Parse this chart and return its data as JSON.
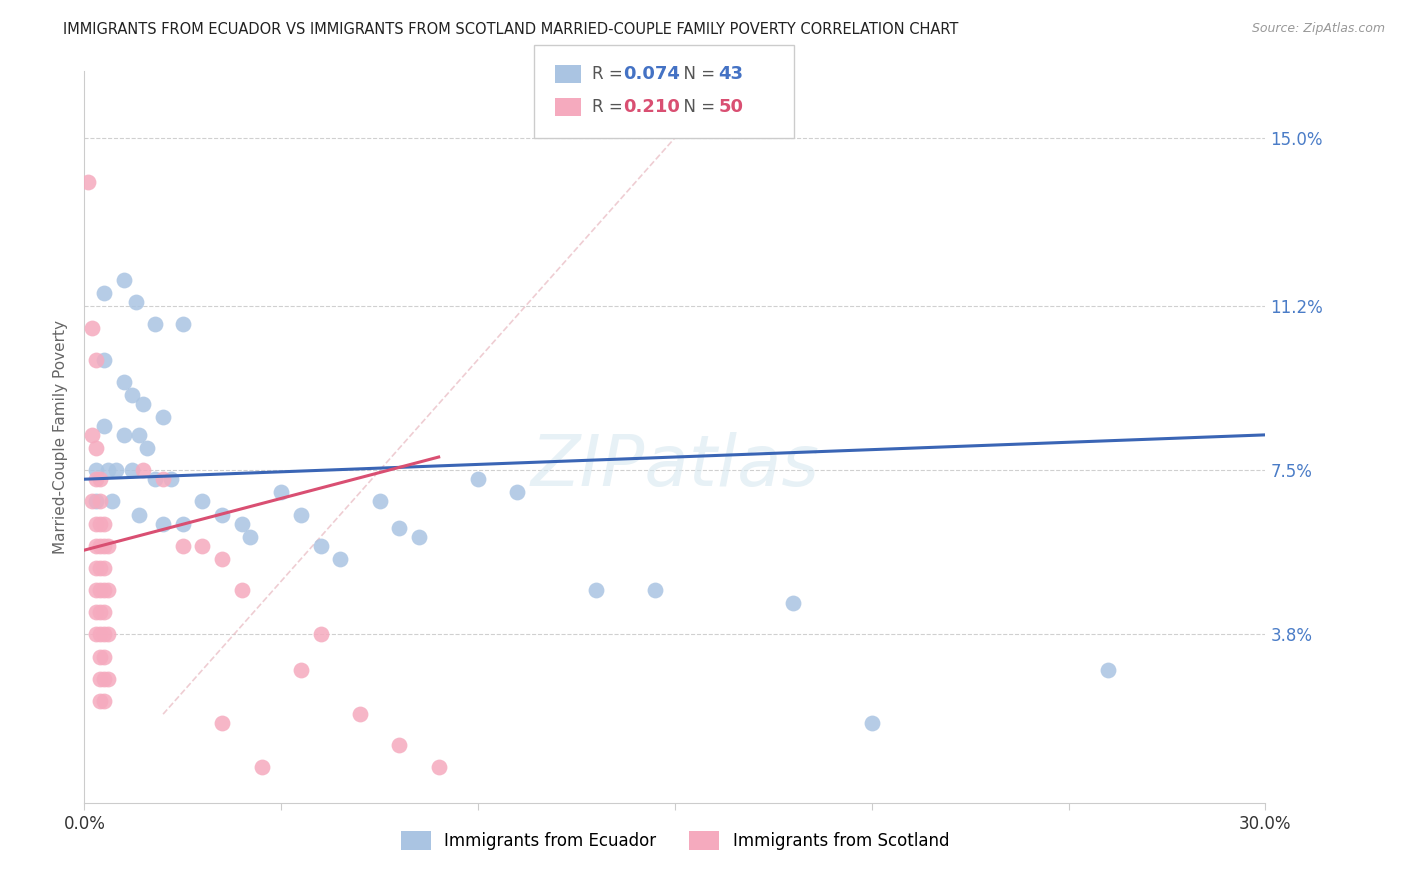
{
  "title": "IMMIGRANTS FROM ECUADOR VS IMMIGRANTS FROM SCOTLAND MARRIED-COUPLE FAMILY POVERTY CORRELATION CHART",
  "source": "Source: ZipAtlas.com",
  "ylabel": "Married-Couple Family Poverty",
  "ytick_labels": [
    "15.0%",
    "11.2%",
    "7.5%",
    "3.8%"
  ],
  "ytick_values": [
    0.15,
    0.112,
    0.075,
    0.038
  ],
  "xtick_labels": [
    "0.0%",
    "",
    "",
    "",
    "",
    "",
    "30.0%"
  ],
  "xtick_values": [
    0.0,
    0.05,
    0.1,
    0.15,
    0.2,
    0.25,
    0.3
  ],
  "xlim": [
    0.0,
    0.3
  ],
  "ylim": [
    0.0,
    0.165
  ],
  "legend_r_ecuador": "0.074",
  "legend_n_ecuador": "43",
  "legend_r_scotland": "0.210",
  "legend_n_scotland": "50",
  "color_ecuador": "#aac4e2",
  "color_scotland": "#f5aabe",
  "line_color_ecuador": "#3a65b5",
  "line_color_scotland": "#d94f72",
  "line_color_diagonal": "#e8b8c0",
  "ecuador_line": [
    [
      0.0,
      0.073
    ],
    [
      0.3,
      0.083
    ]
  ],
  "scotland_line": [
    [
      0.0,
      0.057
    ],
    [
      0.09,
      0.078
    ]
  ],
  "diagonal_line": [
    [
      0.02,
      0.02
    ],
    [
      0.155,
      0.155
    ]
  ],
  "ecuador_points": [
    [
      0.005,
      0.115
    ],
    [
      0.01,
      0.118
    ],
    [
      0.013,
      0.113
    ],
    [
      0.018,
      0.108
    ],
    [
      0.025,
      0.108
    ],
    [
      0.005,
      0.1
    ],
    [
      0.01,
      0.095
    ],
    [
      0.012,
      0.092
    ],
    [
      0.015,
      0.09
    ],
    [
      0.02,
      0.087
    ],
    [
      0.005,
      0.085
    ],
    [
      0.01,
      0.083
    ],
    [
      0.014,
      0.083
    ],
    [
      0.016,
      0.08
    ],
    [
      0.003,
      0.075
    ],
    [
      0.006,
      0.075
    ],
    [
      0.008,
      0.075
    ],
    [
      0.012,
      0.075
    ],
    [
      0.018,
      0.073
    ],
    [
      0.022,
      0.073
    ],
    [
      0.003,
      0.068
    ],
    [
      0.007,
      0.068
    ],
    [
      0.014,
      0.065
    ],
    [
      0.02,
      0.063
    ],
    [
      0.025,
      0.063
    ],
    [
      0.03,
      0.068
    ],
    [
      0.035,
      0.065
    ],
    [
      0.04,
      0.063
    ],
    [
      0.042,
      0.06
    ],
    [
      0.05,
      0.07
    ],
    [
      0.055,
      0.065
    ],
    [
      0.06,
      0.058
    ],
    [
      0.065,
      0.055
    ],
    [
      0.075,
      0.068
    ],
    [
      0.08,
      0.062
    ],
    [
      0.085,
      0.06
    ],
    [
      0.1,
      0.073
    ],
    [
      0.11,
      0.07
    ],
    [
      0.13,
      0.048
    ],
    [
      0.145,
      0.048
    ],
    [
      0.18,
      0.045
    ],
    [
      0.2,
      0.018
    ],
    [
      0.26,
      0.03
    ]
  ],
  "scotland_points": [
    [
      0.001,
      0.14
    ],
    [
      0.002,
      0.107
    ],
    [
      0.003,
      0.1
    ],
    [
      0.002,
      0.083
    ],
    [
      0.003,
      0.08
    ],
    [
      0.003,
      0.073
    ],
    [
      0.004,
      0.073
    ],
    [
      0.002,
      0.068
    ],
    [
      0.004,
      0.068
    ],
    [
      0.003,
      0.063
    ],
    [
      0.004,
      0.063
    ],
    [
      0.005,
      0.063
    ],
    [
      0.003,
      0.058
    ],
    [
      0.004,
      0.058
    ],
    [
      0.005,
      0.058
    ],
    [
      0.006,
      0.058
    ],
    [
      0.003,
      0.053
    ],
    [
      0.004,
      0.053
    ],
    [
      0.005,
      0.053
    ],
    [
      0.003,
      0.048
    ],
    [
      0.004,
      0.048
    ],
    [
      0.005,
      0.048
    ],
    [
      0.006,
      0.048
    ],
    [
      0.003,
      0.043
    ],
    [
      0.004,
      0.043
    ],
    [
      0.005,
      0.043
    ],
    [
      0.003,
      0.038
    ],
    [
      0.004,
      0.038
    ],
    [
      0.005,
      0.038
    ],
    [
      0.006,
      0.038
    ],
    [
      0.004,
      0.033
    ],
    [
      0.005,
      0.033
    ],
    [
      0.004,
      0.028
    ],
    [
      0.005,
      0.028
    ],
    [
      0.006,
      0.028
    ],
    [
      0.004,
      0.023
    ],
    [
      0.005,
      0.023
    ],
    [
      0.015,
      0.075
    ],
    [
      0.02,
      0.073
    ],
    [
      0.025,
      0.058
    ],
    [
      0.03,
      0.058
    ],
    [
      0.035,
      0.055
    ],
    [
      0.04,
      0.048
    ],
    [
      0.055,
      0.03
    ],
    [
      0.07,
      0.02
    ],
    [
      0.08,
      0.013
    ],
    [
      0.09,
      0.008
    ],
    [
      0.035,
      0.018
    ],
    [
      0.045,
      0.008
    ],
    [
      0.06,
      0.038
    ]
  ]
}
